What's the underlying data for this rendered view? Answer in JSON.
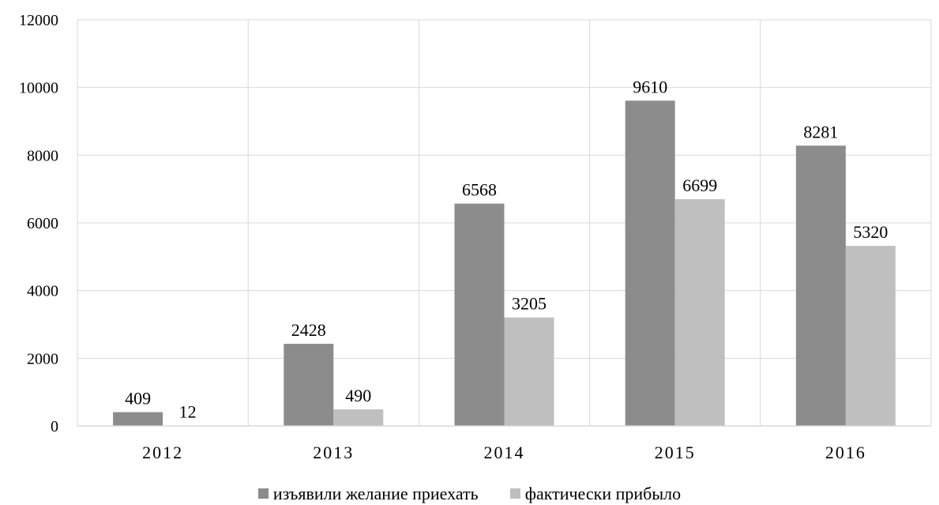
{
  "chart_data": {
    "type": "bar",
    "categories": [
      "2012",
      "2013",
      "2014",
      "2015",
      "2016"
    ],
    "series": [
      {
        "name": "изъявили желание приехать",
        "values": [
          409,
          2428,
          6568,
          9610,
          8281
        ],
        "color": "#8c8c8c"
      },
      {
        "name": "фактически прибыло",
        "values": [
          12,
          490,
          3205,
          6699,
          5320
        ],
        "color": "#bfbfbf"
      }
    ],
    "data_labels": [
      [
        "409",
        "2428",
        "6568",
        "9610",
        "8281"
      ],
      [
        "12",
        "490",
        "3205",
        "6699",
        "5320"
      ]
    ],
    "y_ticks": [
      "0",
      "2000",
      "4000",
      "6000",
      "8000",
      "10000",
      "12000"
    ],
    "ylim": [
      0,
      12000
    ],
    "title": "",
    "xlabel": "",
    "ylabel": "",
    "grid": true,
    "legend_position": "bottom"
  }
}
